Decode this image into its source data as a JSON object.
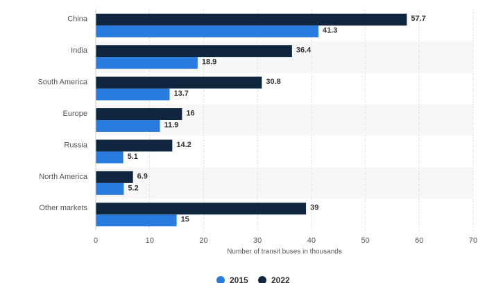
{
  "chart_data": {
    "type": "bar",
    "orientation": "horizontal",
    "x_label": "Number of transit buses in thousands",
    "categories": [
      "China",
      "India",
      "South America",
      "Europe",
      "Russia",
      "North America",
      "Other markets"
    ],
    "series": [
      {
        "name": "2015",
        "color": "#2a7be0",
        "values": [
          41.3,
          18.9,
          13.7,
          11.9,
          5.1,
          5.2,
          15
        ]
      },
      {
        "name": "2022",
        "color": "#10263f",
        "values": [
          57.7,
          36.4,
          30.8,
          16,
          14.2,
          6.9,
          39
        ]
      }
    ],
    "xlim": [
      0,
      70
    ],
    "xticks": [
      0,
      10,
      20,
      30,
      40,
      50,
      60,
      70
    ],
    "grid": true
  }
}
